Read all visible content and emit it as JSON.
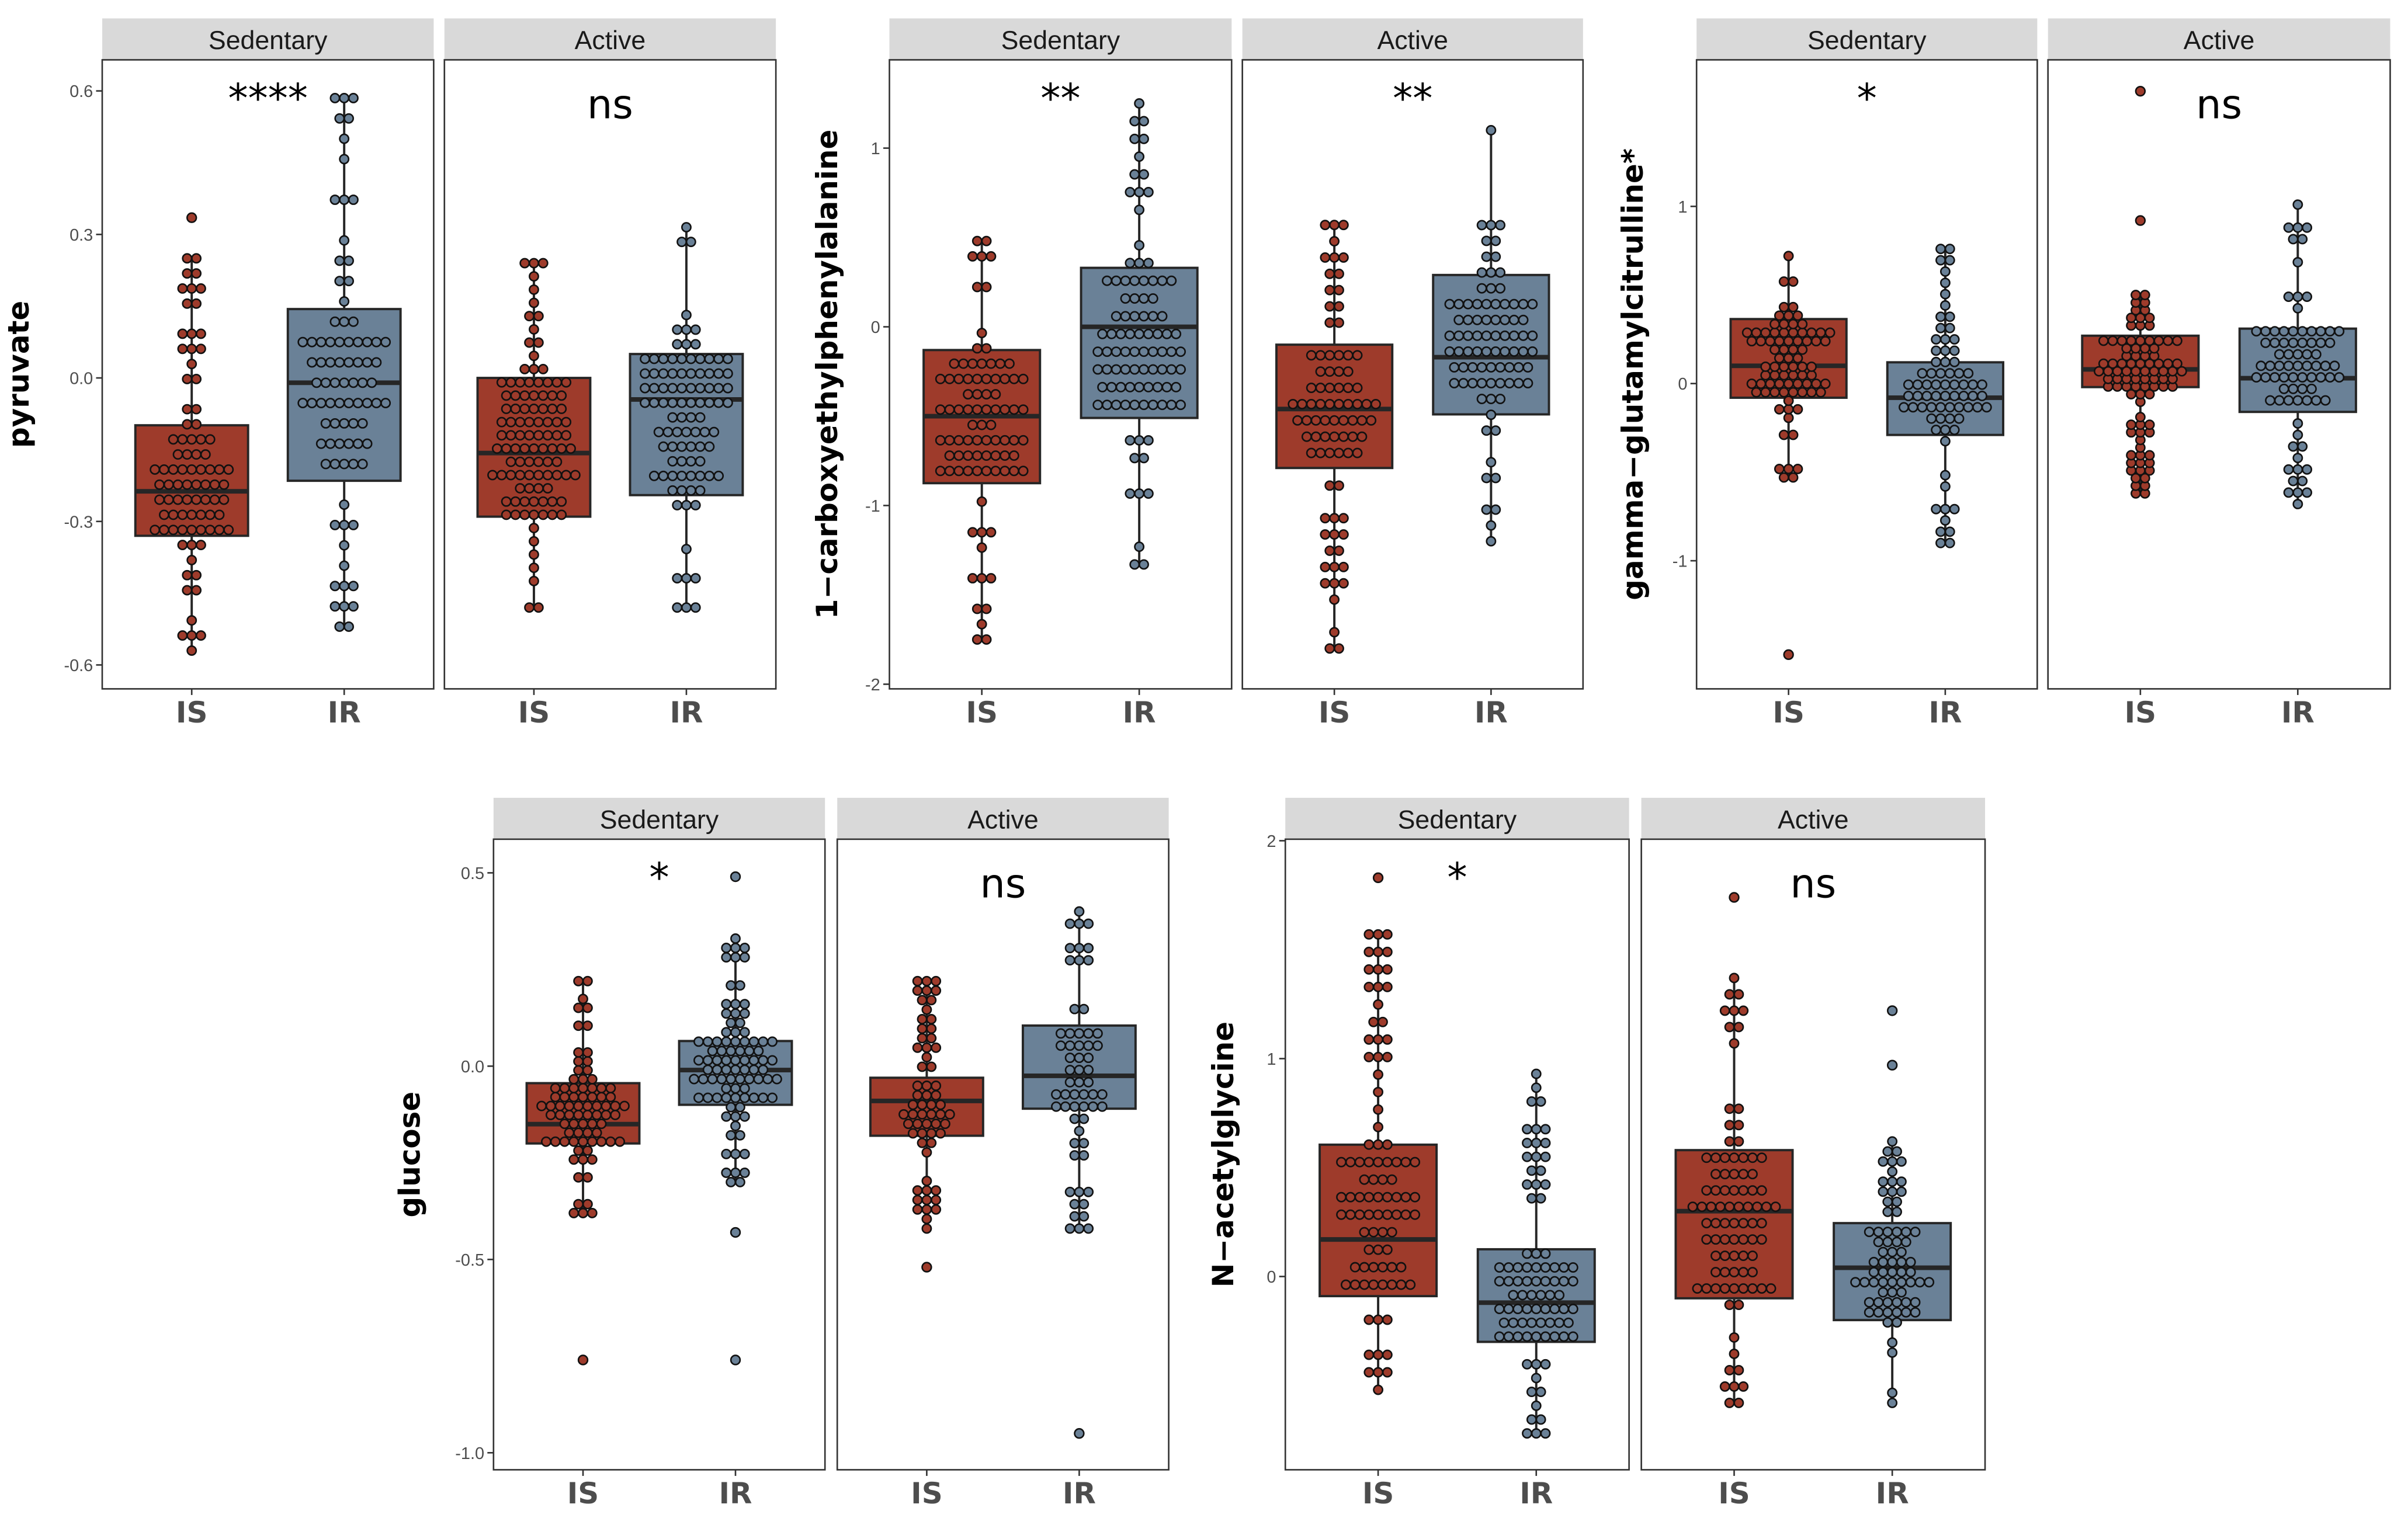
{
  "colors": {
    "IS": "#9e3b2b",
    "IR": "#6a8197",
    "strip": "#d9d9d9",
    "outline": "#262626"
  },
  "chart_data": [
    {
      "type": "boxplot",
      "ylabel": "pyruvate",
      "ylim": [
        -0.65,
        0.665
      ],
      "yticks": [
        0.6,
        0.3,
        0.0,
        -0.3,
        -0.6
      ],
      "ytick_labels": [
        "0.6",
        "0.3",
        "0.0",
        "-0.3",
        "-0.6"
      ],
      "facets": [
        {
          "label": "Sedentary",
          "annotation": "****",
          "groups": [
            {
              "name": "IS",
              "whisker_low": -0.57,
              "q1": -0.33,
              "median": -0.237,
              "q3": -0.099,
              "whisker_high": 0.25,
              "outliers": [
                0.335
              ]
            },
            {
              "name": "IR",
              "whisker_low": -0.52,
              "q1": -0.215,
              "median": -0.01,
              "q3": 0.144,
              "whisker_high": 0.585,
              "outliers": []
            }
          ]
        },
        {
          "label": "Active",
          "annotation": "ns",
          "groups": [
            {
              "name": "IS",
              "whisker_low": -0.48,
              "q1": -0.29,
              "median": -0.157,
              "q3": 0.0,
              "whisker_high": 0.24,
              "outliers": []
            },
            {
              "name": "IR",
              "whisker_low": -0.48,
              "q1": -0.245,
              "median": -0.045,
              "q3": 0.05,
              "whisker_high": 0.315,
              "outliers": []
            }
          ]
        }
      ]
    },
    {
      "type": "boxplot",
      "ylabel": "1−carboxyethylphenylalanine",
      "ylim": [
        -2.026,
        1.494
      ],
      "yticks": [
        1,
        0,
        -1,
        -2
      ],
      "ytick_labels": [
        "1",
        "0",
        "-1",
        "-2"
      ],
      "facets": [
        {
          "label": "Sedentary",
          "annotation": "**",
          "groups": [
            {
              "name": "IS",
              "whisker_low": -1.75,
              "q1": -0.875,
              "median": -0.5,
              "q3": -0.13,
              "whisker_high": 0.48,
              "outliers": []
            },
            {
              "name": "IR",
              "whisker_low": -1.33,
              "q1": -0.51,
              "median": 0.0,
              "q3": 0.33,
              "whisker_high": 1.25,
              "outliers": []
            }
          ]
        },
        {
          "label": "Active",
          "annotation": "**",
          "groups": [
            {
              "name": "IS",
              "whisker_low": -1.8,
              "q1": -0.79,
              "median": -0.46,
              "q3": -0.1,
              "whisker_high": 0.57,
              "outliers": []
            },
            {
              "name": "IR",
              "whisker_low": -1.2,
              "q1": -0.49,
              "median": -0.17,
              "q3": 0.29,
              "whisker_high": 1.1,
              "outliers": []
            }
          ]
        }
      ]
    },
    {
      "type": "boxplot",
      "ylabel": "gamma−glutamylcitrulline*",
      "ylim": [
        -1.723,
        1.827
      ],
      "yticks": [
        1,
        0,
        -1
      ],
      "ytick_labels": [
        "1",
        "0",
        "-1"
      ],
      "facets": [
        {
          "label": "Sedentary",
          "annotation": "*",
          "groups": [
            {
              "name": "IS",
              "whisker_low": -0.53,
              "q1": -0.08,
              "median": 0.1,
              "q3": 0.364,
              "whisker_high": 0.72,
              "outliers": [
                -1.53
              ]
            },
            {
              "name": "IR",
              "whisker_low": -0.9,
              "q1": -0.29,
              "median": -0.08,
              "q3": 0.12,
              "whisker_high": 0.76,
              "outliers": []
            }
          ]
        },
        {
          "label": "Active",
          "annotation": "ns",
          "groups": [
            {
              "name": "IS",
              "whisker_low": -0.62,
              "q1": -0.02,
              "median": 0.08,
              "q3": 0.27,
              "whisker_high": 0.5,
              "outliers": [
                0.92,
                1.65
              ]
            },
            {
              "name": "IR",
              "whisker_low": -0.68,
              "q1": -0.16,
              "median": 0.03,
              "q3": 0.31,
              "whisker_high": 1.01,
              "outliers": []
            }
          ]
        }
      ]
    },
    {
      "type": "boxplot",
      "ylabel": "glucose",
      "ylim": [
        -1.044,
        0.587
      ],
      "yticks": [
        0.5,
        0.0,
        -0.5,
        -1.0
      ],
      "ytick_labels": [
        "0.5",
        "0.0",
        "-0.5",
        "-1.0"
      ],
      "facets": [
        {
          "label": "Sedentary",
          "annotation": "*",
          "groups": [
            {
              "name": "IS",
              "whisker_low": -0.38,
              "q1": -0.2,
              "median": -0.15,
              "q3": -0.044,
              "whisker_high": 0.22,
              "outliers": [
                -0.76
              ]
            },
            {
              "name": "IR",
              "whisker_low": -0.3,
              "q1": -0.1,
              "median": -0.01,
              "q3": 0.065,
              "whisker_high": 0.33,
              "outliers": [
                0.49,
                -0.43,
                -0.76
              ]
            }
          ]
        },
        {
          "label": "Active",
          "annotation": "ns",
          "groups": [
            {
              "name": "IS",
              "whisker_low": -0.42,
              "q1": -0.18,
              "median": -0.09,
              "q3": -0.03,
              "whisker_high": 0.22,
              "outliers": [
                -0.52
              ]
            },
            {
              "name": "IR",
              "whisker_low": -0.42,
              "q1": -0.11,
              "median": -0.025,
              "q3": 0.105,
              "whisker_high": 0.4,
              "outliers": [
                -0.95
              ]
            }
          ]
        }
      ]
    },
    {
      "type": "boxplot",
      "ylabel": "N−acetylglycine",
      "ylim": [
        -0.887,
        2.007
      ],
      "yticks": [
        2,
        1,
        0
      ],
      "ytick_labels": [
        "2",
        "1",
        "0"
      ],
      "facets": [
        {
          "label": "Sedentary",
          "annotation": "*",
          "groups": [
            {
              "name": "IS",
              "whisker_low": -0.52,
              "q1": -0.09,
              "median": 0.17,
              "q3": 0.605,
              "whisker_high": 1.57,
              "outliers": [
                1.83
              ]
            },
            {
              "name": "IR",
              "whisker_low": -0.72,
              "q1": -0.3,
              "median": -0.12,
              "q3": 0.125,
              "whisker_high": 0.93,
              "outliers": []
            }
          ]
        },
        {
          "label": "Active",
          "annotation": "ns",
          "groups": [
            {
              "name": "IS",
              "whisker_low": -0.58,
              "q1": -0.1,
              "median": 0.3,
              "q3": 0.58,
              "whisker_high": 1.37,
              "outliers": [
                1.74
              ]
            },
            {
              "name": "IR",
              "whisker_low": -0.58,
              "q1": -0.2,
              "median": 0.04,
              "q3": 0.245,
              "whisker_high": 0.62,
              "outliers": [
                0.97,
                1.22
              ]
            }
          ]
        }
      ]
    }
  ]
}
